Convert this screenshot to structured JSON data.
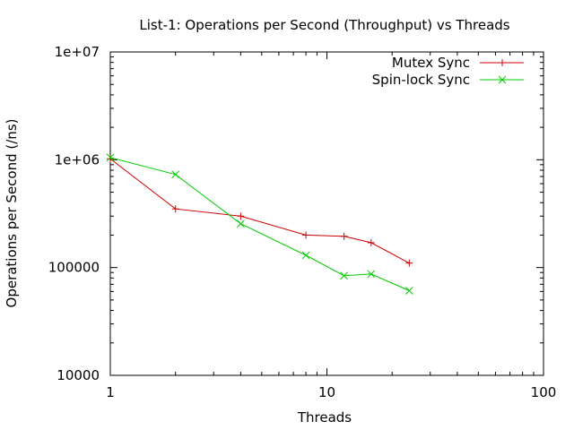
{
  "chart_data": {
    "type": "line",
    "title": "List-1: Operations per Second (Throughput) vs Threads",
    "xlabel": "Threads",
    "ylabel": "Operations per Second (/ns)",
    "xscale": "log",
    "yscale": "log",
    "xlim": [
      1,
      100
    ],
    "ylim": [
      10000,
      10000000
    ],
    "x_ticks": [
      {
        "value": 1,
        "label": "1"
      },
      {
        "value": 10,
        "label": "10"
      },
      {
        "value": 100,
        "label": "100"
      }
    ],
    "y_ticks": [
      {
        "value": 10000,
        "label": "10000"
      },
      {
        "value": 100000,
        "label": "100000"
      },
      {
        "value": 1000000,
        "label": "1e+06"
      },
      {
        "value": 10000000,
        "label": "1e+07"
      }
    ],
    "grid": false,
    "legend_position": "top-right",
    "series": [
      {
        "name": "Mutex Sync",
        "color": "#cc0000",
        "marker": "plus",
        "x": [
          1,
          2,
          4,
          8,
          12,
          16,
          24
        ],
        "y": [
          1020000,
          350000,
          300000,
          200000,
          195000,
          170000,
          110000
        ]
      },
      {
        "name": "Spin-lock Sync",
        "color": "#00cc00",
        "marker": "cross",
        "x": [
          1,
          2,
          4,
          8,
          12,
          16,
          24
        ],
        "y": [
          1050000,
          730000,
          255000,
          130000,
          84000,
          87000,
          61000
        ]
      }
    ]
  }
}
